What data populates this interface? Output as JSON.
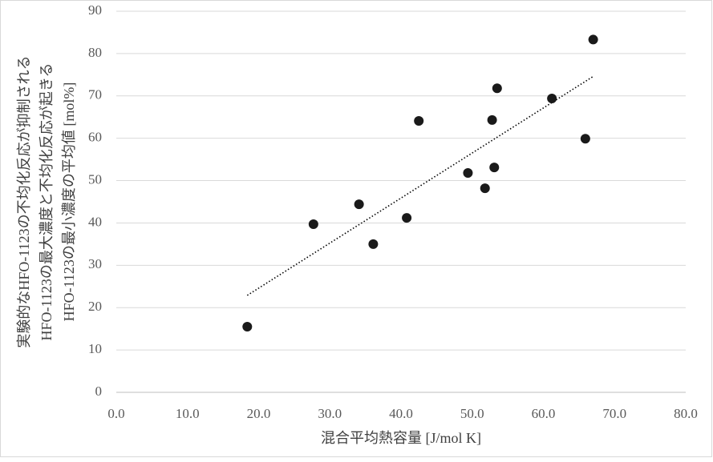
{
  "chart_data": {
    "type": "scatter",
    "xlabel": "混合平均熱容量 [J/mol K]",
    "ylabel": [
      "実験的なHFO-1123の不均化反応が抑制される",
      "HFO-1123の最大濃度と不均化反応が起きる",
      "HFO-1123の最小濃度の平均値 [mol%]"
    ],
    "color": "#1a1a1a",
    "x": [
      18.4,
      27.7,
      34.1,
      36.1,
      40.8,
      42.5,
      49.4,
      51.8,
      52.8,
      53.1,
      53.5,
      61.2,
      65.9,
      67.0
    ],
    "values": [
      15.5,
      39.7,
      44.4,
      35.0,
      41.2,
      64.1,
      51.8,
      48.2,
      64.3,
      53.1,
      71.8,
      69.4,
      59.9,
      83.3
    ],
    "trendline": {
      "x": [
        18.4,
        67.0
      ],
      "y": [
        22.9,
        74.6
      ]
    },
    "xlim": [
      0,
      80
    ],
    "xticks": [
      {
        "value": 0,
        "label": "0.0"
      },
      {
        "value": 10,
        "label": "10.0"
      },
      {
        "value": 20,
        "label": "20.0"
      },
      {
        "value": 30,
        "label": "30.0"
      },
      {
        "value": 40,
        "label": "40.0"
      },
      {
        "value": 50,
        "label": "50.0"
      },
      {
        "value": 60,
        "label": "60.0"
      },
      {
        "value": 70,
        "label": "70.0"
      },
      {
        "value": 80,
        "label": "80.0"
      }
    ],
    "ylim": [
      0,
      90
    ],
    "yticks": [
      0,
      10,
      20,
      30,
      40,
      50,
      60,
      70,
      80,
      90
    ],
    "grid": true
  }
}
